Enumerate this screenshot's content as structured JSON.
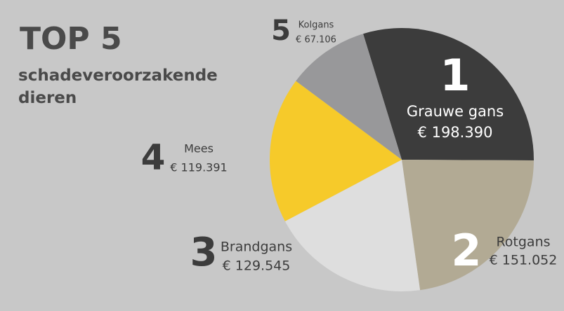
{
  "chart_data": {
    "type": "pie",
    "title": "TOP 5",
    "subtitle": "schadeveroorzakende dieren",
    "categories": [
      "Grauwe gans",
      "Rotgans",
      "Brandgans",
      "Mees",
      "Kolgans"
    ],
    "ranks": [
      "1",
      "2",
      "3",
      "4",
      "5"
    ],
    "values": [
      198390,
      151052,
      129545,
      119391,
      67106
    ],
    "value_labels": [
      "€ 198.390",
      "€ 151.052",
      "€ 129.545",
      "€ 119.391",
      "€ 67.106"
    ],
    "colors": [
      "#3c3c3c",
      "#b2aa94",
      "#dedede",
      "#f6ca2a",
      "#98989a"
    ]
  }
}
